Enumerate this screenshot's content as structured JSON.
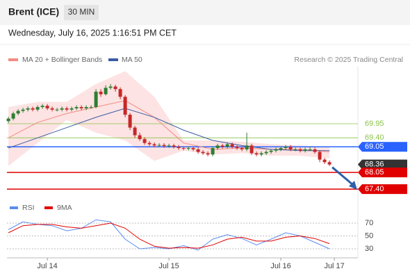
{
  "chart_data": {
    "type": "candlestick",
    "symbol": "Brent (ICE)",
    "timeframe": "30 MIN",
    "date": "Wednesday, July 16, 2025 1:16:51 PM CET",
    "credit": "Research © 2025 Trading Central",
    "up_color": "#2e7d32",
    "down_color": "#c62828",
    "xlim": [
      -0.3,
      71.84
    ],
    "ylim": [
      67.05,
      72.2
    ],
    "xticks": [
      {
        "value": 8,
        "label": "Jul 14"
      },
      {
        "value": 33,
        "label": "Jul 15"
      },
      {
        "value": 56,
        "label": "Jul 16"
      },
      {
        "value": 67,
        "label": "Jul 17"
      }
    ],
    "candles": [
      [
        70.05,
        70.22,
        69.98,
        70.15
      ],
      [
        70.15,
        70.42,
        70.08,
        70.35
      ],
      [
        70.35,
        70.52,
        70.28,
        70.45
      ],
      [
        70.45,
        70.57,
        70.38,
        70.5
      ],
      [
        70.5,
        70.62,
        70.43,
        70.55
      ],
      [
        70.55,
        70.62,
        70.43,
        70.5
      ],
      [
        70.5,
        70.67,
        70.43,
        70.6
      ],
      [
        70.6,
        70.72,
        70.53,
        70.65
      ],
      [
        70.65,
        70.72,
        70.48,
        70.55
      ],
      [
        70.55,
        70.62,
        70.43,
        70.5
      ],
      [
        70.5,
        70.57,
        70.43,
        70.5
      ],
      [
        70.5,
        70.62,
        70.43,
        70.55
      ],
      [
        70.55,
        70.62,
        70.43,
        70.5
      ],
      [
        70.5,
        70.62,
        70.43,
        70.55
      ],
      [
        70.55,
        70.67,
        70.48,
        70.6
      ],
      [
        70.6,
        70.67,
        70.48,
        70.55
      ],
      [
        70.55,
        70.67,
        70.48,
        70.6
      ],
      [
        70.6,
        70.67,
        70.53,
        70.6
      ],
      [
        70.6,
        71.3,
        70.55,
        71.2
      ],
      [
        71.2,
        71.3,
        71.0,
        71.1
      ],
      [
        71.1,
        71.45,
        71.05,
        71.35
      ],
      [
        71.35,
        71.5,
        71.28,
        71.4
      ],
      [
        71.4,
        71.47,
        71.2,
        71.3
      ],
      [
        71.3,
        71.37,
        70.9,
        71.0
      ],
      [
        71.0,
        71.07,
        70.2,
        70.3
      ],
      [
        70.3,
        70.37,
        69.7,
        69.8
      ],
      [
        69.8,
        69.87,
        69.4,
        69.5
      ],
      [
        69.5,
        69.6,
        69.28,
        69.35
      ],
      [
        69.35,
        69.42,
        69.13,
        69.2
      ],
      [
        69.2,
        69.27,
        69.08,
        69.15
      ],
      [
        69.15,
        69.22,
        69.03,
        69.1
      ],
      [
        69.1,
        69.19,
        69.03,
        69.12
      ],
      [
        69.12,
        69.19,
        69.01,
        69.08
      ],
      [
        69.08,
        69.17,
        69.01,
        69.1
      ],
      [
        69.1,
        69.17,
        68.98,
        69.05
      ],
      [
        69.05,
        69.12,
        68.93,
        69.0
      ],
      [
        69.0,
        69.07,
        68.91,
        68.98
      ],
      [
        68.98,
        69.07,
        68.91,
        69.0
      ],
      [
        69.0,
        69.07,
        68.88,
        68.95
      ],
      [
        68.95,
        69.02,
        68.78,
        68.85
      ],
      [
        68.85,
        68.92,
        68.73,
        68.8
      ],
      [
        68.8,
        68.87,
        68.68,
        68.75
      ],
      [
        68.75,
        69.07,
        68.68,
        69.0
      ],
      [
        69.0,
        69.17,
        68.93,
        69.1
      ],
      [
        69.1,
        69.17,
        68.98,
        69.05
      ],
      [
        69.05,
        69.22,
        68.98,
        69.15
      ],
      [
        69.15,
        69.22,
        68.98,
        69.05
      ],
      [
        69.05,
        69.12,
        68.93,
        69.0
      ],
      [
        69.0,
        69.07,
        68.88,
        68.95
      ],
      [
        68.95,
        69.6,
        68.88,
        69.1
      ],
      [
        69.1,
        69.17,
        68.73,
        68.8
      ],
      [
        68.8,
        68.87,
        68.68,
        68.75
      ],
      [
        68.75,
        68.87,
        68.68,
        68.8
      ],
      [
        68.8,
        68.92,
        68.73,
        68.85
      ],
      [
        68.85,
        68.97,
        68.78,
        68.9
      ],
      [
        68.9,
        69.02,
        68.83,
        68.95
      ],
      [
        68.95,
        69.07,
        68.88,
        69.0
      ],
      [
        69.0,
        69.12,
        68.93,
        69.05
      ],
      [
        69.05,
        69.12,
        68.88,
        68.95
      ],
      [
        68.95,
        69.02,
        68.88,
        68.95
      ],
      [
        68.95,
        69.02,
        68.83,
        68.9
      ],
      [
        68.9,
        69.02,
        68.83,
        68.95
      ],
      [
        68.95,
        69.05,
        68.88,
        68.95
      ],
      [
        68.95,
        69.02,
        68.78,
        68.85
      ],
      [
        68.85,
        68.92,
        68.45,
        68.55
      ],
      [
        68.55,
        68.62,
        68.38,
        68.45
      ],
      [
        68.45,
        68.52,
        68.3,
        68.36
      ]
    ],
    "bands": {
      "name": "MA 20 + Bollinger Bands",
      "color": "#f28b82",
      "fill": "#fde3e3",
      "x": [
        0,
        6,
        12,
        18,
        24,
        30,
        36,
        42,
        48,
        54,
        60,
        66
      ],
      "upper": [
        70.6,
        70.8,
        70.8,
        71.5,
        72.0,
        71.0,
        69.3,
        69.3,
        69.25,
        69.15,
        69.1,
        69.05
      ],
      "lower": [
        68.3,
        69.2,
        70.1,
        69.6,
        69.3,
        68.5,
        68.9,
        68.75,
        68.8,
        68.7,
        68.7,
        68.6
      ],
      "values": [
        69.4,
        70.0,
        70.35,
        70.6,
        70.85,
        70.2,
        69.2,
        68.95,
        69.0,
        68.95,
        68.95,
        68.85
      ]
    },
    "ma50": {
      "name": "MA 50",
      "color": "#3b5ba5",
      "x": [
        0,
        6,
        12,
        18,
        24,
        30,
        36,
        42,
        48,
        54,
        60,
        66
      ],
      "values": [
        69.0,
        69.4,
        69.8,
        70.2,
        70.55,
        70.2,
        69.7,
        69.3,
        69.1,
        68.95,
        68.9,
        68.9
      ]
    },
    "levels": [
      {
        "value": 69.95,
        "label": "69.95",
        "color": "#8bc34a",
        "boxed": false
      },
      {
        "value": 69.4,
        "label": "69.40",
        "color": "#8bc34a",
        "boxed": false
      },
      {
        "value": 69.05,
        "label": "69.05",
        "color": "#2962ff",
        "boxed": true
      },
      {
        "value": 68.36,
        "label": "68.36",
        "color": "#333333",
        "boxed": true
      },
      {
        "value": 68.05,
        "label": "68.05",
        "color": "#e00000",
        "boxed": true
      },
      {
        "value": 67.4,
        "label": "67.40",
        "color": "#e00000",
        "boxed": true
      }
    ],
    "rsi": {
      "ylim": [
        20,
        90
      ],
      "yticks": [
        70,
        50,
        30
      ],
      "series": [
        {
          "name": "RSI",
          "color": "#5b8def",
          "x": [
            0,
            3,
            6,
            9,
            12,
            15,
            18,
            21,
            24,
            27,
            30,
            33,
            36,
            39,
            42,
            45,
            48,
            51,
            54,
            57,
            60,
            63,
            66
          ],
          "values": [
            60,
            72,
            68,
            66,
            58,
            62,
            75,
            72,
            45,
            30,
            32,
            30,
            35,
            28,
            45,
            52,
            46,
            36,
            45,
            55,
            50,
            40,
            30
          ]
        },
        {
          "name": "9MA",
          "color": "#e00000",
          "x": [
            0,
            3,
            6,
            9,
            12,
            15,
            18,
            21,
            24,
            27,
            30,
            33,
            36,
            39,
            42,
            45,
            48,
            51,
            54,
            57,
            60,
            63,
            66
          ],
          "values": [
            55,
            66,
            68,
            68,
            64,
            62,
            66,
            70,
            62,
            45,
            34,
            31,
            32,
            31,
            36,
            45,
            48,
            42,
            42,
            48,
            50,
            46,
            38
          ]
        }
      ]
    }
  }
}
